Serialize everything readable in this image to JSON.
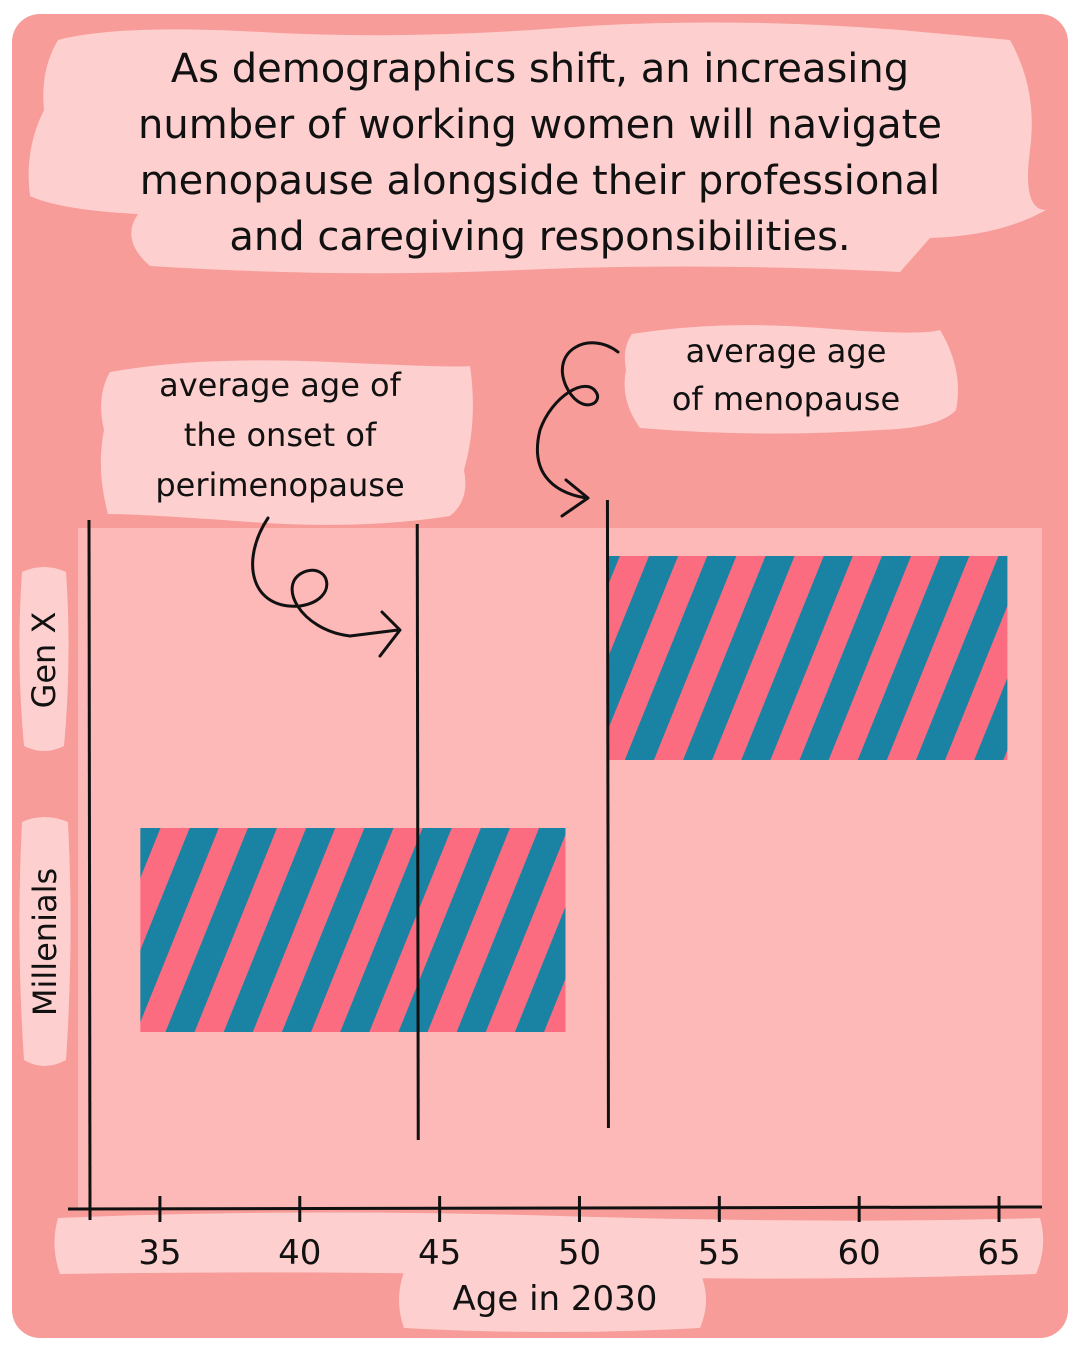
{
  "headline": {
    "lines": [
      "As demographics shift, an increasing",
      "number of working women will navigate",
      "menopause alongside their professional",
      "and caregiving responsibilities."
    ]
  },
  "annotations": {
    "perimenopause": [
      "average age of",
      "the onset of",
      "perimenopause"
    ],
    "menopause": [
      "average age",
      "of menopause"
    ]
  },
  "colors": {
    "frame": "#f79c99",
    "plot_area": "#fcb9b8",
    "label_patch": "#fdd0cf",
    "stripe_teal": "#1a82a2",
    "stripe_pink": "#fc6c80",
    "ink": "#111111"
  },
  "chart_data": {
    "type": "bar",
    "orientation": "horizontal",
    "xlabel": "Age in 2030",
    "xlim": [
      32.5,
      65.5
    ],
    "xticks": [
      35,
      40,
      45,
      50,
      55,
      60,
      65
    ],
    "categories": [
      "Gen X",
      "Millenials"
    ],
    "ranges": [
      {
        "category": "Gen X",
        "start": 51,
        "end": 65.3
      },
      {
        "category": "Millenials",
        "start": 34.3,
        "end": 49.5
      }
    ],
    "reference_lines": [
      {
        "x": 44.2,
        "label": "average age of the onset of perimenopause"
      },
      {
        "x": 51,
        "label": "average age of menopause"
      }
    ],
    "grid": false,
    "legend": "none"
  }
}
